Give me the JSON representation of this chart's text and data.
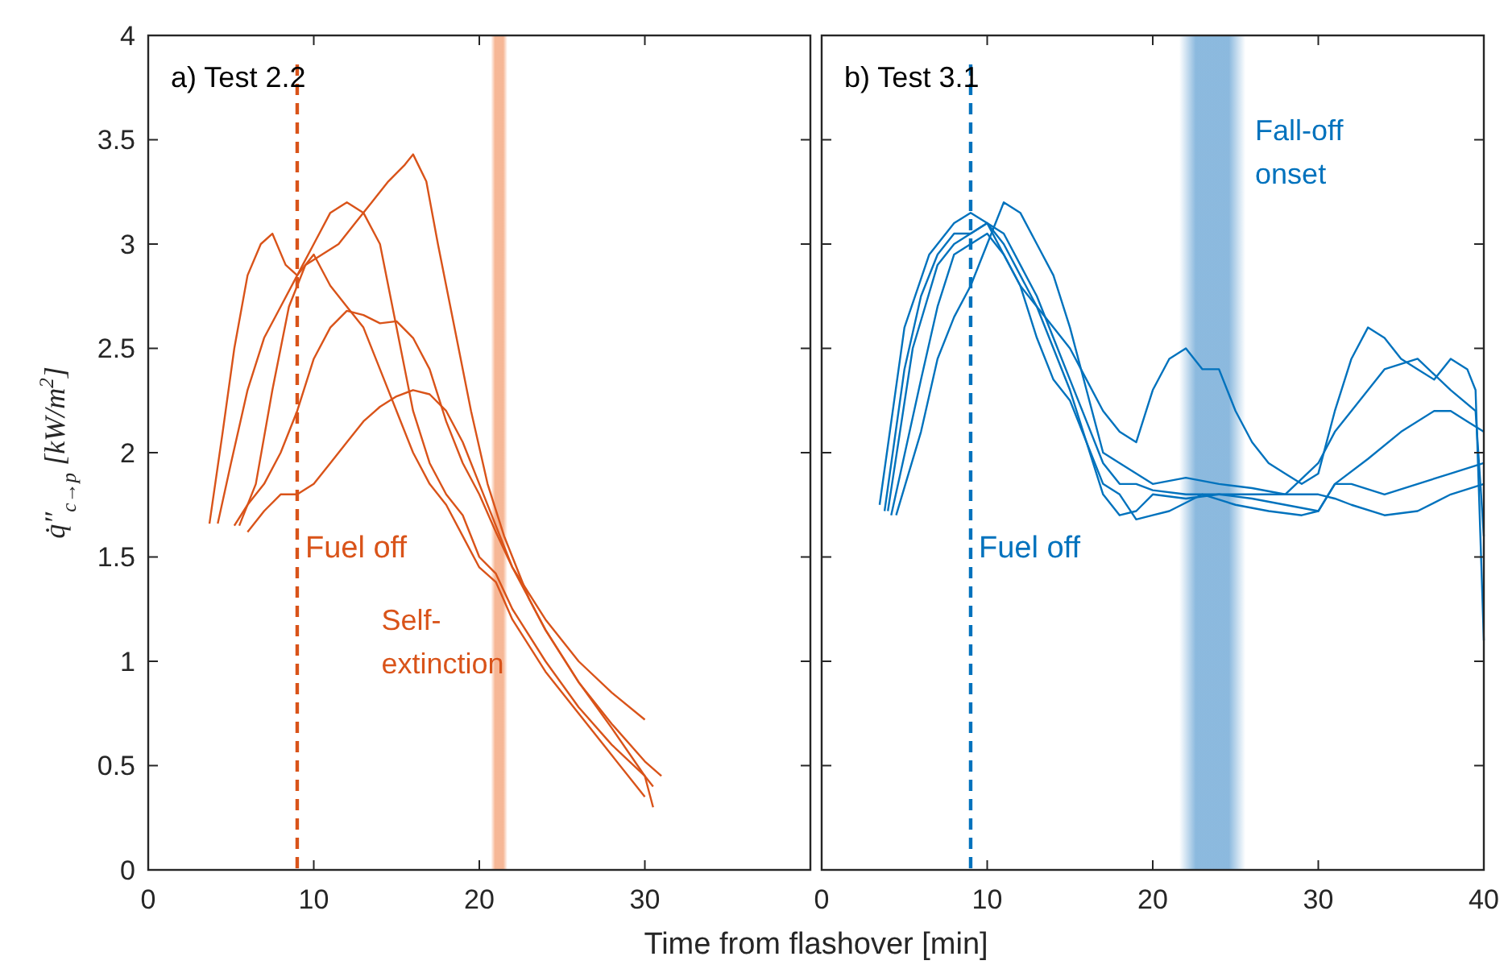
{
  "chart_data": [
    {
      "type": "line",
      "annotations": [
        "a) Test 2.2",
        "Self-\nextinction"
      ],
      "xlabel": "Time from flashover [min]",
      "ylabel": "q̇″$_{c→p}$ [kW/m$^{2}$]",
      "xlim": [
        0,
        40
      ],
      "ylim": [
        0,
        4
      ],
      "xticks": [
        0,
        10,
        20,
        30,
        {
          "value": 40,
          "label": null
        }
      ],
      "yticks": [
        0,
        0.5,
        1,
        1.5,
        2,
        2.5,
        3,
        3.5,
        4
      ],
      "ref_lines": [
        {
          "axis": "x",
          "value": 9,
          "label": "Fuel off",
          "color": "#d95319",
          "line_style": "dashed"
        }
      ],
      "bands": [
        {
          "axis": "x",
          "from": 20.7,
          "to": 21.7,
          "color": "#f4a57c"
        }
      ],
      "series": [
        {
          "color": "#d95319",
          "x": [
            3.7,
            4.5,
            5.2,
            6,
            6.8,
            7.5,
            8.3,
            9,
            10,
            11,
            12,
            13,
            14,
            15,
            16,
            17,
            18,
            19,
            20,
            21,
            22,
            24,
            26,
            28,
            30
          ],
          "values": [
            1.66,
            2.1,
            2.5,
            2.85,
            3,
            3.05,
            2.9,
            2.85,
            2.95,
            2.8,
            2.7,
            2.6,
            2.4,
            2.2,
            2,
            1.85,
            1.75,
            1.6,
            1.45,
            1.38,
            1.2,
            0.95,
            0.75,
            0.55,
            0.35
          ]
        },
        {
          "color": "#d95319",
          "x": [
            4.2,
            5,
            6,
            7,
            8,
            9,
            10,
            11,
            12,
            13,
            14,
            15,
            16,
            17,
            18,
            19,
            20,
            21,
            22,
            24,
            26,
            28,
            30,
            30.5
          ],
          "values": [
            1.66,
            1.95,
            2.3,
            2.55,
            2.7,
            2.85,
            3,
            3.15,
            3.2,
            3.15,
            3,
            2.6,
            2.2,
            1.95,
            1.8,
            1.7,
            1.5,
            1.42,
            1.25,
            1,
            0.78,
            0.6,
            0.45,
            0.4
          ]
        },
        {
          "color": "#d95319",
          "x": [
            5.5,
            6.5,
            7.5,
            8.5,
            9.5,
            10.5,
            11.5,
            12.5,
            13.5,
            14.5,
            15.5,
            16,
            16.8,
            17.5,
            18.5,
            19.5,
            20.5,
            21.5,
            22,
            23,
            24,
            26,
            28,
            30,
            31
          ],
          "values": [
            1.65,
            1.85,
            2.3,
            2.7,
            2.9,
            2.95,
            3,
            3.1,
            3.2,
            3.3,
            3.38,
            3.43,
            3.3,
            3,
            2.6,
            2.2,
            1.85,
            1.6,
            1.5,
            1.3,
            1.15,
            0.9,
            0.7,
            0.52,
            0.45
          ]
        },
        {
          "color": "#d95319",
          "x": [
            5.2,
            6,
            7,
            8,
            9,
            10,
            11,
            12,
            13,
            14,
            15,
            16,
            17,
            18,
            19,
            20,
            21,
            22,
            23,
            24,
            26,
            28,
            30,
            30.5
          ],
          "values": [
            1.65,
            1.75,
            1.85,
            2,
            2.2,
            2.45,
            2.6,
            2.68,
            2.66,
            2.62,
            2.63,
            2.55,
            2.4,
            2.15,
            1.95,
            1.8,
            1.62,
            1.45,
            1.3,
            1.15,
            0.9,
            0.68,
            0.45,
            0.3
          ]
        },
        {
          "color": "#d95319",
          "x": [
            6,
            7,
            8,
            9,
            10,
            11,
            12,
            13,
            14,
            15,
            16,
            17,
            18,
            19,
            20,
            21,
            22,
            24,
            26,
            28,
            30
          ],
          "values": [
            1.62,
            1.72,
            1.8,
            1.8,
            1.85,
            1.95,
            2.05,
            2.15,
            2.22,
            2.27,
            2.3,
            2.28,
            2.2,
            2.05,
            1.85,
            1.65,
            1.45,
            1.2,
            1,
            0.85,
            0.72
          ]
        }
      ]
    },
    {
      "type": "line",
      "annotations": [
        "b) Test 3.1",
        "Fall-off\nonset"
      ],
      "xlim": [
        0,
        40
      ],
      "ylim": [
        0,
        4
      ],
      "xticks": [
        0,
        10,
        20,
        30,
        40
      ],
      "yticks": [
        0,
        0.5,
        1,
        1.5,
        2,
        2.5,
        3,
        3.5,
        4
      ],
      "tick_labels": "x",
      "ref_lines": [
        {
          "axis": "x",
          "value": 9,
          "label": "Fuel off",
          "color": "#0072bd",
          "line_style": "dashed"
        }
      ],
      "bands": [
        {
          "axis": "x",
          "from": 21.6,
          "to": 25.6,
          "color": "#6fa8d6"
        }
      ],
      "series": [
        {
          "color": "#0072bd",
          "x": [
            3.5,
            5,
            6.5,
            8,
            9,
            10,
            11,
            12,
            13,
            14,
            15,
            16,
            17,
            18,
            19,
            20,
            21,
            22,
            23,
            24,
            25,
            26,
            27,
            28,
            29,
            30,
            31,
            32,
            33,
            34,
            35,
            36,
            37,
            38,
            39,
            39.5,
            40
          ],
          "values": [
            1.75,
            2.6,
            2.95,
            3.1,
            3.15,
            3.1,
            2.95,
            2.8,
            2.7,
            2.6,
            2.5,
            2.35,
            2.2,
            2.1,
            2.05,
            2.3,
            2.45,
            2.5,
            2.4,
            2.4,
            2.2,
            2.05,
            1.95,
            1.9,
            1.85,
            1.9,
            2.2,
            2.45,
            2.6,
            2.55,
            2.45,
            2.4,
            2.35,
            2.45,
            2.4,
            2.3,
            1.1
          ]
        },
        {
          "color": "#0072bd",
          "x": [
            3.8,
            5,
            6,
            7,
            8,
            9,
            10,
            11,
            12,
            13,
            14,
            15,
            16,
            17,
            18,
            19,
            20,
            22,
            24,
            26,
            28,
            30,
            31,
            33,
            35,
            37,
            38,
            39,
            40
          ],
          "values": [
            1.72,
            2.4,
            2.75,
            2.95,
            3.05,
            3.05,
            3.1,
            3.05,
            2.9,
            2.75,
            2.55,
            2.35,
            2.15,
            1.95,
            1.85,
            1.85,
            1.82,
            1.8,
            1.8,
            1.78,
            1.75,
            1.72,
            1.85,
            1.97,
            2.1,
            2.2,
            2.2,
            2.15,
            2.1
          ]
        },
        {
          "color": "#0072bd",
          "x": [
            4.2,
            6,
            7,
            8,
            9,
            10,
            11,
            12,
            13,
            14,
            15,
            16,
            17,
            18,
            19,
            20,
            22,
            24,
            26,
            28,
            30,
            31,
            32,
            34,
            36,
            38,
            40
          ],
          "values": [
            1.7,
            2.35,
            2.7,
            2.95,
            3,
            3.05,
            2.95,
            2.8,
            2.55,
            2.35,
            2.25,
            2.05,
            1.8,
            1.7,
            1.72,
            1.8,
            1.78,
            1.8,
            1.8,
            1.8,
            1.8,
            1.78,
            1.75,
            1.7,
            1.72,
            1.8,
            1.85
          ]
        },
        {
          "color": "#0072bd",
          "x": [
            4.5,
            6,
            7,
            8,
            9,
            10,
            11,
            12,
            13,
            14,
            15,
            16,
            17,
            18,
            20,
            22,
            24,
            26,
            28,
            30,
            31,
            32,
            34,
            36,
            38,
            39.5,
            40
          ],
          "values": [
            1.7,
            2.1,
            2.45,
            2.65,
            2.8,
            3,
            3.2,
            3.15,
            3,
            2.85,
            2.6,
            2.3,
            2,
            1.95,
            1.85,
            1.88,
            1.85,
            1.83,
            1.8,
            1.95,
            2.1,
            2.2,
            2.4,
            2.45,
            2.3,
            2.2,
            1.6
          ]
        },
        {
          "color": "#0072bd",
          "x": [
            4,
            5.5,
            7,
            8,
            9,
            10,
            11,
            12,
            13,
            14,
            15,
            16,
            17,
            18,
            19,
            20,
            21,
            23,
            25,
            27,
            29,
            30,
            31,
            32,
            34,
            36,
            38,
            40
          ],
          "values": [
            1.72,
            2.5,
            2.9,
            3,
            3.05,
            3.1,
            3,
            2.85,
            2.7,
            2.5,
            2.3,
            2.05,
            1.85,
            1.8,
            1.68,
            1.7,
            1.72,
            1.8,
            1.75,
            1.72,
            1.7,
            1.72,
            1.85,
            1.85,
            1.8,
            1.85,
            1.9,
            1.95
          ]
        }
      ]
    }
  ]
}
